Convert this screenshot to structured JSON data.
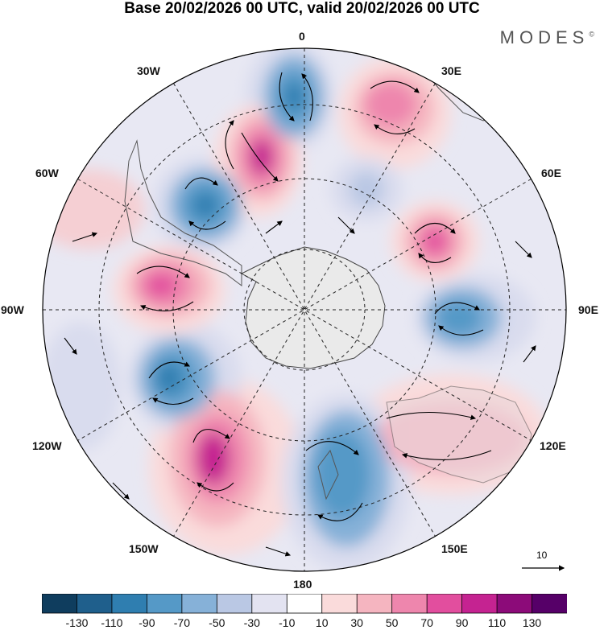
{
  "title": "Base 20/02/2026 00 UTC, valid 20/02/2026 00 UTC",
  "brand": "MODES",
  "brand_mark": "©",
  "longitude_labels": {
    "n0": "0",
    "n30e": "30E",
    "n60e": "60E",
    "n90e": "90E",
    "n120e": "120E",
    "n150e": "150E",
    "n180": "180",
    "n150w": "150W",
    "n120w": "120W",
    "n90w": "90W",
    "n60w": "60W",
    "n30w": "30W"
  },
  "reference_vector": "10",
  "colorbar": {
    "ticks": [
      "-130",
      "-110",
      "-90",
      "-70",
      "-50",
      "-30",
      "-10",
      "10",
      "30",
      "50",
      "70",
      "90",
      "110",
      "130"
    ],
    "colors": [
      "#0f3d5e",
      "#1f5f8c",
      "#2f7eb0",
      "#5599c7",
      "#86b1d8",
      "#bac8e4",
      "#e3e3f1",
      "#ffffff",
      "#fadbdb",
      "#f5b5c0",
      "#ee86ad",
      "#e24e9e",
      "#c52391",
      "#8c0b79",
      "#560068"
    ]
  },
  "chart_data": {
    "type": "heatmap",
    "title": "Base 20/02/2026 00 UTC, valid 20/02/2026 00 UTC",
    "projection": "south polar stereographic",
    "field": "anomaly (shaded) with wind vectors",
    "value_range": [
      -130,
      130
    ],
    "contour_levels": [
      -130,
      -110,
      -90,
      -70,
      -50,
      -30,
      -10,
      10,
      30,
      50,
      70,
      90,
      110,
      130
    ],
    "anomaly_centers": [
      {
        "lon": "10W",
        "sign": "negative",
        "peak": -90
      },
      {
        "lon": "25E",
        "sign": "positive",
        "peak": 70
      },
      {
        "lon": "30W",
        "sign": "positive",
        "peak": 110
      },
      {
        "lon": "50W",
        "sign": "negative",
        "peak": -90
      },
      {
        "lon": "60E",
        "sign": "positive",
        "peak": 90
      },
      {
        "lon": "80W",
        "sign": "positive",
        "peak": 90
      },
      {
        "lon": "90E",
        "sign": "negative",
        "peak": -70
      },
      {
        "lon": "110W",
        "sign": "negative",
        "peak": -90
      },
      {
        "lon": "120E",
        "sign": "positive",
        "peak": 50
      },
      {
        "lon": "145W",
        "sign": "positive",
        "peak": 110
      },
      {
        "lon": "165E",
        "sign": "negative",
        "peak": -70
      }
    ]
  }
}
